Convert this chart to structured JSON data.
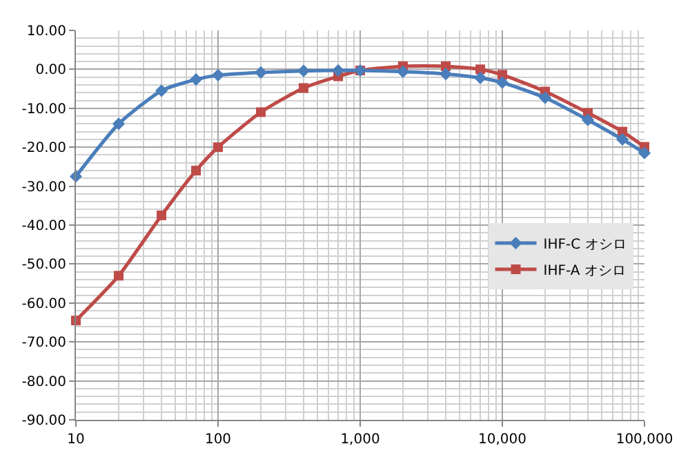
{
  "chart_data": {
    "type": "line",
    "x": [
      10,
      20,
      40,
      70,
      100,
      200,
      400,
      700,
      1000,
      2000,
      4000,
      7000,
      10000,
      20000,
      40000,
      70000,
      100000
    ],
    "series": [
      {
        "name": "IHF-C オシロ",
        "color": "#4a7ebb",
        "marker": "diamond",
        "values": [
          -27.5,
          -14,
          -5.5,
          -2.6,
          -1.5,
          -0.8,
          -0.4,
          -0.3,
          -0.3,
          -0.6,
          -1.2,
          -2.2,
          -3.4,
          -7.3,
          -13,
          -18,
          -21.5
        ]
      },
      {
        "name": "IHF-A オシロ",
        "color": "#be4b48",
        "marker": "square",
        "values": [
          -64.5,
          -53,
          -37.5,
          -26,
          -20,
          -11,
          -4.8,
          -1.8,
          -0.3,
          0.8,
          0.8,
          0,
          -1.4,
          -5.7,
          -11.2,
          -16,
          -19.9
        ]
      }
    ],
    "log": "x",
    "xlim": [
      10,
      100000
    ],
    "xticks": [
      10,
      100,
      {
        "value": 1000,
        "label": "1,000"
      },
      {
        "value": 10000,
        "label": "10,000"
      },
      {
        "value": 100000,
        "label": "100,000"
      }
    ],
    "ylim": [
      -90,
      10
    ],
    "yticks": [
      {
        "value": -90,
        "label": "-90.00"
      },
      {
        "value": -80,
        "label": "-80.00"
      },
      {
        "value": -70,
        "label": "-70.00"
      },
      {
        "value": -60,
        "label": "-60.00"
      },
      {
        "value": -50,
        "label": "-50.00"
      },
      {
        "value": -40,
        "label": "-40.00"
      },
      {
        "value": -30,
        "label": "-30.00"
      },
      {
        "value": -20,
        "label": "-20.00"
      },
      {
        "value": -10,
        "label": "-10.00"
      },
      {
        "value": 0,
        "label": "0.00"
      },
      {
        "value": 10,
        "label": "10.00"
      }
    ],
    "grid": true,
    "legend": "right",
    "line_style": "solid"
  }
}
